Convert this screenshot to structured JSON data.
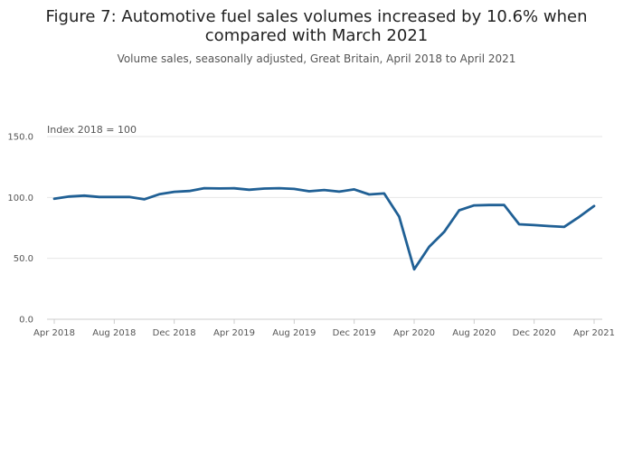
{
  "chart_data": {
    "type": "line",
    "title_line1": "Figure 7: Automotive fuel sales volumes increased by 10.6% when",
    "title_line2": "compared with March 2021",
    "subtitle": "Volume sales, seasonally adjusted, Great Britain, April 2018 to April 2021",
    "ylabel": "Index 2018 = 100",
    "ylim": [
      0,
      150
    ],
    "yticks": [
      0,
      50,
      100,
      150
    ],
    "ytick_labels": [
      "0.0",
      "50.0",
      "100.0",
      "150.0"
    ],
    "xtick_labels": [
      "Apr 2018",
      "Aug 2018",
      "Dec 2018",
      "Apr 2019",
      "Aug 2019",
      "Dec 2019",
      "Apr 2020",
      "Aug 2020",
      "Dec 2020",
      "Apr 2021"
    ],
    "grid": true,
    "x": [
      "Apr 2018",
      "May 2018",
      "Jun 2018",
      "Jul 2018",
      "Aug 2018",
      "Sep 2018",
      "Oct 2018",
      "Nov 2018",
      "Dec 2018",
      "Jan 2019",
      "Feb 2019",
      "Mar 2019",
      "Apr 2019",
      "May 2019",
      "Jun 2019",
      "Jul 2019",
      "Aug 2019",
      "Sep 2019",
      "Oct 2019",
      "Nov 2019",
      "Dec 2019",
      "Jan 2020",
      "Feb 2020",
      "Mar 2020",
      "Apr 2020",
      "May 2020",
      "Jun 2020",
      "Jul 2020",
      "Aug 2020",
      "Sep 2020",
      "Oct 2020",
      "Nov 2020",
      "Dec 2020",
      "Jan 2021",
      "Feb 2021",
      "Mar 2021",
      "Apr 2021"
    ],
    "series": [
      {
        "values": [
          98.9,
          100.8,
          101.5,
          100.4,
          100.4,
          100.4,
          98.5,
          102.6,
          104.6,
          105.3,
          107.6,
          107.4,
          107.5,
          106.3,
          107.3,
          107.6,
          107.0,
          105.1,
          106.1,
          104.8,
          106.6,
          102.5,
          103.3,
          84.3,
          41.0,
          59.5,
          71.7,
          89.5,
          93.5,
          93.8,
          93.8,
          78.0,
          77.3,
          76.5,
          75.8,
          84.0,
          93.0
        ],
        "color": "#206095"
      }
    ]
  }
}
